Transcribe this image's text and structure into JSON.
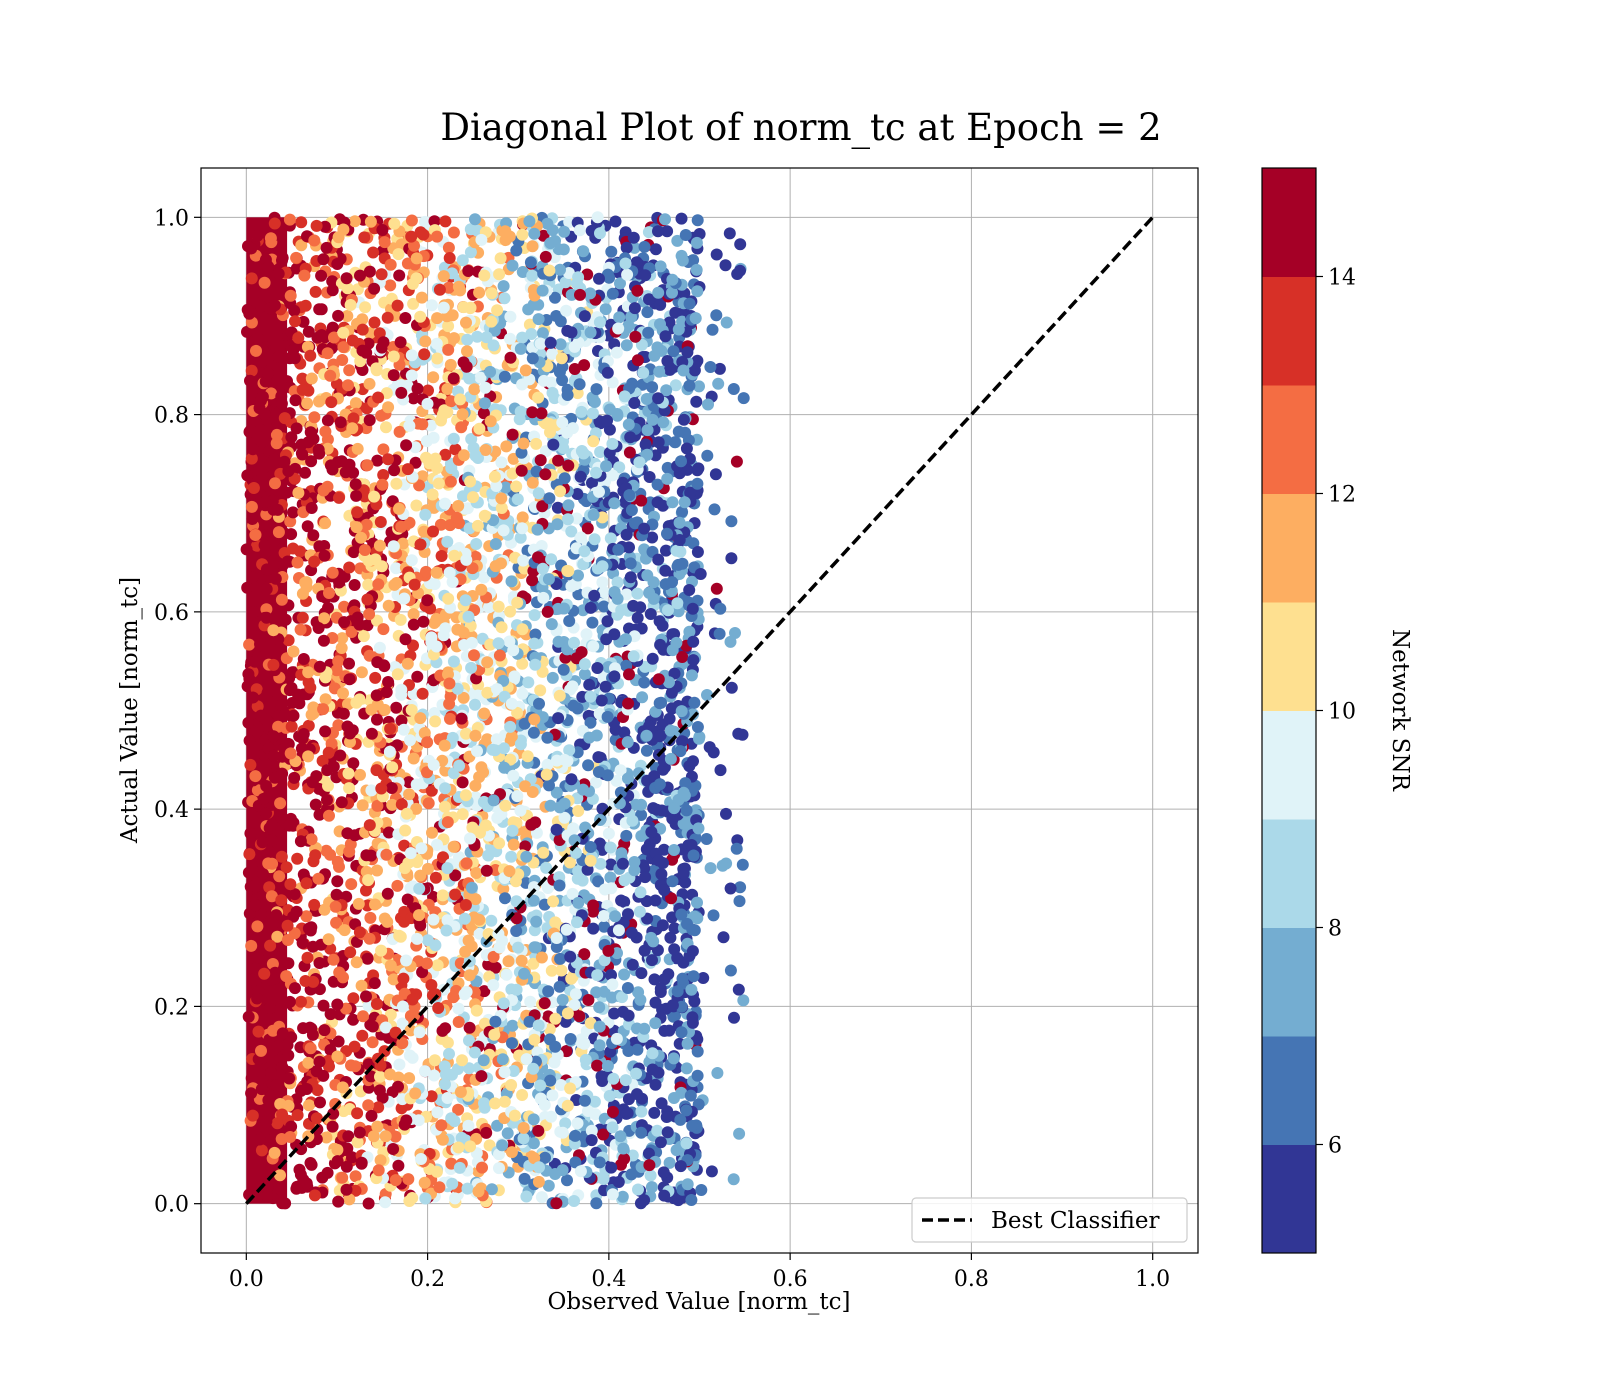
{
  "chart_data": {
    "type": "scatter",
    "title": "Diagonal Plot of norm_tc at Epoch = 2",
    "xlabel": "Observed Value [norm_tc]",
    "ylabel": "Actual Value [norm_tc]",
    "xlim": [
      -0.05,
      1.05
    ],
    "ylim": [
      -0.05,
      1.05
    ],
    "xticks": [
      "0.0",
      "0.2",
      "0.4",
      "0.6",
      "0.8",
      "1.0"
    ],
    "yticks": [
      "0.0",
      "0.2",
      "0.4",
      "0.6",
      "0.8",
      "1.0"
    ],
    "grid": true,
    "scatter_summary": {
      "x_range": [
        0.0,
        0.55
      ],
      "y_range": [
        0.0,
        1.0
      ],
      "trend": "higher Network SNR points cluster near observed value 0; lower SNR points spread to observed values near 0.4-0.55"
    },
    "reference_line": {
      "name": "Best Classifier",
      "x": [
        0.0,
        1.0
      ],
      "y": [
        0.0,
        1.0
      ],
      "style": "dashed",
      "color": "#000000"
    },
    "legend": {
      "entries": [
        "Best Classifier"
      ],
      "placement": "lower-right"
    },
    "colorbar": {
      "label": "Network SNR",
      "range": [
        5,
        15
      ],
      "ticks": [
        "6",
        "8",
        "10",
        "12",
        "14"
      ],
      "bins": [
        {
          "from": 5,
          "to": 6,
          "color": "#313695"
        },
        {
          "from": 6,
          "to": 7,
          "color": "#4575b4"
        },
        {
          "from": 7,
          "to": 8,
          "color": "#74add1"
        },
        {
          "from": 8,
          "to": 9,
          "color": "#abd9e9"
        },
        {
          "from": 9,
          "to": 10,
          "color": "#e0f3f8"
        },
        {
          "from": 10,
          "to": 11,
          "color": "#fee090"
        },
        {
          "from": 11,
          "to": 12,
          "color": "#fdae61"
        },
        {
          "from": 12,
          "to": 13,
          "color": "#f46d43"
        },
        {
          "from": 13,
          "to": 14,
          "color": "#d73027"
        },
        {
          "from": 14,
          "to": 15,
          "color": "#a50026"
        }
      ]
    }
  }
}
